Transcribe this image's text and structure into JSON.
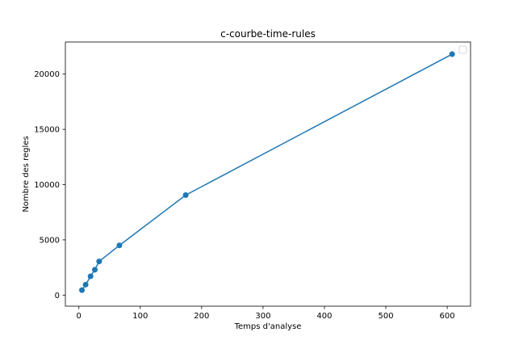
{
  "chart_data": {
    "type": "line",
    "title": "c-courbe-time-rules",
    "xlabel": "Temps d'analyse",
    "ylabel": "Nombre des regles",
    "xlim": [
      -22,
      638
    ],
    "ylim": [
      -1000,
      22900
    ],
    "xticks": [
      0,
      100,
      200,
      300,
      400,
      500,
      600
    ],
    "yticks": [
      0,
      5000,
      10000,
      15000,
      20000
    ],
    "grid": false,
    "legend": "top-right",
    "series": [
      {
        "color": "#1f77b4",
        "marker": "circle",
        "x": [
          5,
          11,
          19,
          26,
          33,
          66,
          174,
          608
        ],
        "y": [
          450,
          950,
          1700,
          2300,
          3050,
          4500,
          9050,
          21800
        ]
      }
    ]
  }
}
